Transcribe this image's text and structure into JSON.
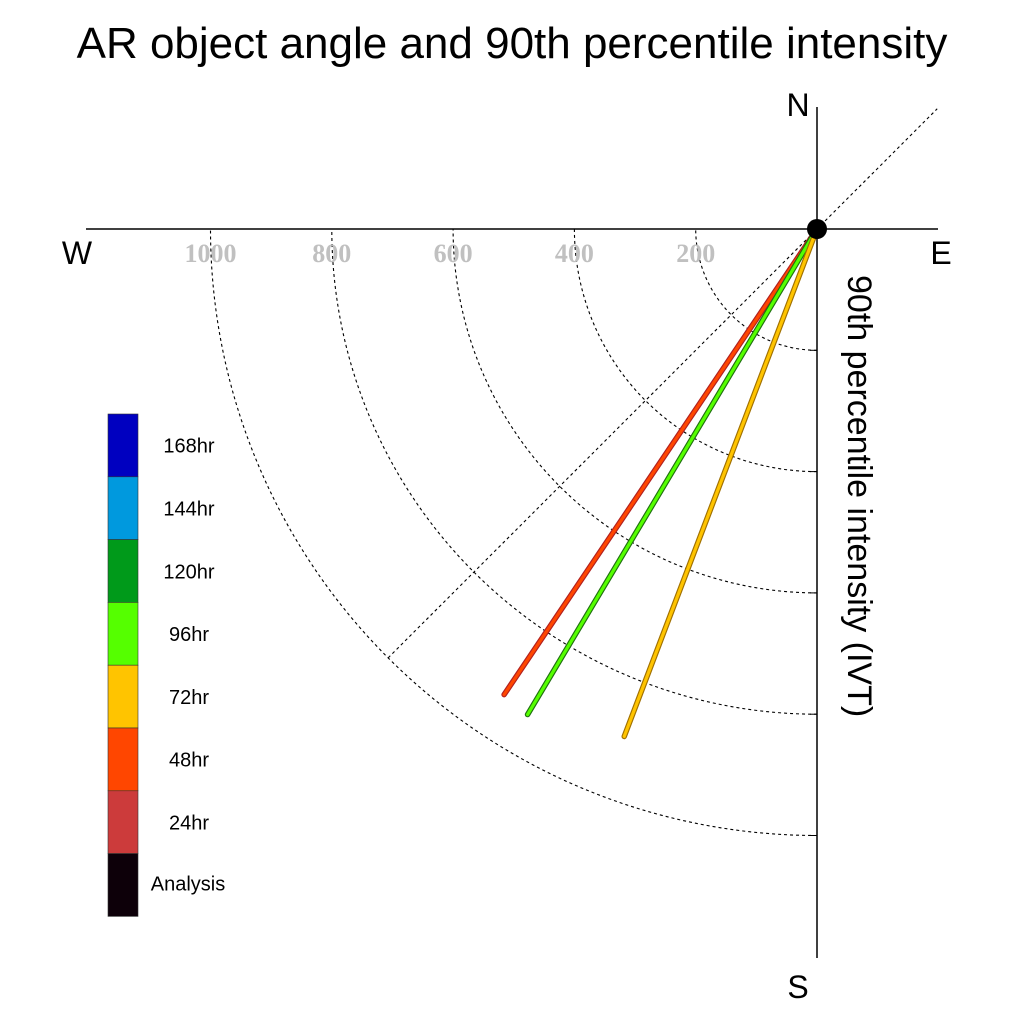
{
  "chart_data": {
    "type": "polar-line",
    "title": "AR object angle and 90th percentile intensity",
    "radial_axis_label": "90th percentile intensity (IVT)",
    "compass": {
      "north": "N",
      "south": "S",
      "east": "E",
      "west": "W"
    },
    "radial_ticks": [
      200,
      400,
      600,
      800,
      1000
    ],
    "radial_tick_labels": [
      "200",
      "400",
      "600",
      "800",
      "1000"
    ],
    "angle_convention": "degrees west of south",
    "grid": true,
    "legend_placement": "left",
    "legend": [
      {
        "label": "168hr",
        "color": "#0000c0"
      },
      {
        "label": "144hr",
        "color": "#0099de"
      },
      {
        "label": "120hr",
        "color": "#009a1a"
      },
      {
        "label": "96hr",
        "color": "#55ff00"
      },
      {
        "label": "72hr",
        "color": "#ffc400"
      },
      {
        "label": "48hr",
        "color": "#ff4600"
      },
      {
        "label": "24hr",
        "color": "#cc3b3b"
      },
      {
        "label": "Analysis",
        "color": "#0d0009"
      }
    ],
    "series": [
      {
        "name": "48hr",
        "color": "#ff4600",
        "outline": "#b02020",
        "angle": 33.9,
        "intensity": 925
      },
      {
        "name": "96hr",
        "color": "#55ff00",
        "outline": "#207010",
        "angle": 30.8,
        "intensity": 932
      },
      {
        "name": "72hr",
        "color": "#ffc400",
        "outline": "#a07000",
        "angle": 20.8,
        "intensity": 895
      }
    ]
  }
}
